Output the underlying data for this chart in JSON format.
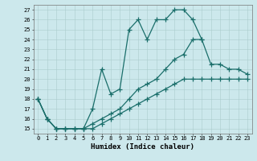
{
  "xlabel": "Humidex (Indice chaleur)",
  "background_color": "#cce8ec",
  "line_color": "#1a6e6a",
  "xlim": [
    -0.5,
    23.5
  ],
  "ylim": [
    14.5,
    27.5
  ],
  "yticks": [
    15,
    16,
    17,
    18,
    19,
    20,
    21,
    22,
    23,
    24,
    25,
    26,
    27
  ],
  "xticks": [
    0,
    1,
    2,
    3,
    4,
    5,
    6,
    7,
    8,
    9,
    10,
    11,
    12,
    13,
    14,
    15,
    16,
    17,
    18,
    19,
    20,
    21,
    22,
    23
  ],
  "series1_x": [
    0,
    1,
    2,
    3,
    4,
    5,
    6,
    7,
    8,
    9,
    10,
    11,
    12,
    13,
    14,
    15,
    16,
    17,
    18
  ],
  "series1_y": [
    18,
    16,
    15,
    15,
    15,
    15,
    17,
    21,
    18.5,
    19,
    25,
    26,
    24,
    26,
    26,
    27,
    27,
    26,
    24
  ],
  "series2_x": [
    0,
    1,
    2,
    3,
    4,
    5,
    6,
    7,
    8,
    9,
    10,
    11,
    12,
    13,
    14,
    15,
    16,
    17,
    18,
    19,
    20,
    21,
    22,
    23
  ],
  "series2_y": [
    18,
    16,
    15,
    15,
    15,
    15,
    15.5,
    16,
    16.5,
    17,
    18,
    19,
    19.5,
    20,
    21,
    22,
    22.5,
    24,
    24,
    21.5,
    21.5,
    21,
    21,
    20.5
  ],
  "series3_x": [
    0,
    1,
    2,
    3,
    4,
    5,
    6,
    7,
    8,
    9,
    10,
    11,
    12,
    13,
    14,
    15,
    16,
    17,
    18,
    19,
    20,
    21,
    22,
    23
  ],
  "series3_y": [
    18,
    16,
    15,
    15,
    15,
    15,
    15,
    15.5,
    16,
    16.5,
    17,
    17.5,
    18,
    18.5,
    19,
    19.5,
    20,
    20,
    20,
    20,
    20,
    20,
    20,
    20
  ]
}
